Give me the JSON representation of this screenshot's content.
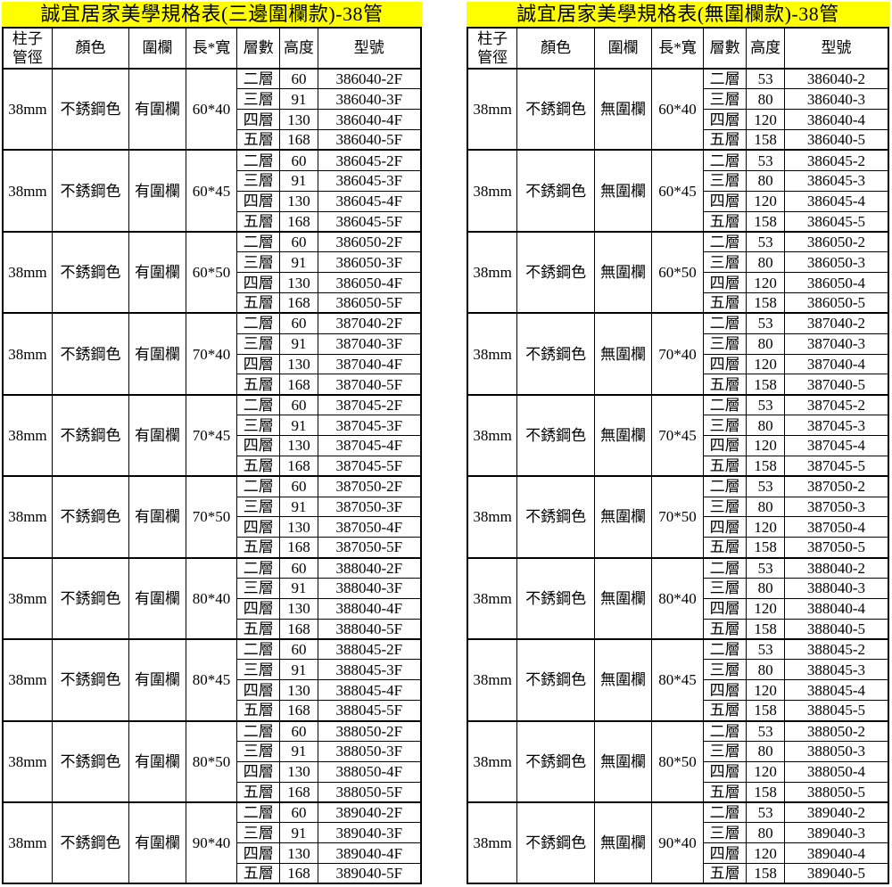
{
  "colors": {
    "title_bg": "#FFFF00",
    "border": "#000000",
    "text": "#000000",
    "background": "#FFFFFF"
  },
  "tables": [
    {
      "id": "fenced",
      "title": "誠宜居家美學規格表(三邊圍欄款)-38管",
      "headers": [
        "柱子\n管徑",
        "顏色",
        "圍欄",
        "長*寬",
        "層數",
        "高度",
        "型號"
      ],
      "groups": [
        {
          "diameter": "38mm",
          "color": "不銹鋼色",
          "fence": "有圍欄",
          "size": "60*40",
          "rows": [
            [
              "二層",
              "60",
              "386040-2F"
            ],
            [
              "三層",
              "91",
              "386040-3F"
            ],
            [
              "四層",
              "130",
              "386040-4F"
            ],
            [
              "五層",
              "168",
              "386040-5F"
            ]
          ]
        },
        {
          "diameter": "38mm",
          "color": "不銹鋼色",
          "fence": "有圍欄",
          "size": "60*45",
          "rows": [
            [
              "二層",
              "60",
              "386045-2F"
            ],
            [
              "三層",
              "91",
              "386045-3F"
            ],
            [
              "四層",
              "130",
              "386045-4F"
            ],
            [
              "五層",
              "168",
              "386045-5F"
            ]
          ]
        },
        {
          "diameter": "38mm",
          "color": "不銹鋼色",
          "fence": "有圍欄",
          "size": "60*50",
          "rows": [
            [
              "二層",
              "60",
              "386050-2F"
            ],
            [
              "三層",
              "91",
              "386050-3F"
            ],
            [
              "四層",
              "130",
              "386050-4F"
            ],
            [
              "五層",
              "168",
              "386050-5F"
            ]
          ]
        },
        {
          "diameter": "38mm",
          "color": "不銹鋼色",
          "fence": "有圍欄",
          "size": "70*40",
          "rows": [
            [
              "二層",
              "60",
              "387040-2F"
            ],
            [
              "三層",
              "91",
              "387040-3F"
            ],
            [
              "四層",
              "130",
              "387040-4F"
            ],
            [
              "五層",
              "168",
              "387040-5F"
            ]
          ]
        },
        {
          "diameter": "38mm",
          "color": "不銹鋼色",
          "fence": "有圍欄",
          "size": "70*45",
          "rows": [
            [
              "二層",
              "60",
              "387045-2F"
            ],
            [
              "三層",
              "91",
              "387045-3F"
            ],
            [
              "四層",
              "130",
              "387045-4F"
            ],
            [
              "五層",
              "168",
              "387045-5F"
            ]
          ]
        },
        {
          "diameter": "38mm",
          "color": "不銹鋼色",
          "fence": "有圍欄",
          "size": "70*50",
          "rows": [
            [
              "二層",
              "60",
              "387050-2F"
            ],
            [
              "三層",
              "91",
              "387050-3F"
            ],
            [
              "四層",
              "130",
              "387050-4F"
            ],
            [
              "五層",
              "168",
              "387050-5F"
            ]
          ]
        },
        {
          "diameter": "38mm",
          "color": "不銹鋼色",
          "fence": "有圍欄",
          "size": "80*40",
          "rows": [
            [
              "二層",
              "60",
              "388040-2F"
            ],
            [
              "三層",
              "91",
              "388040-3F"
            ],
            [
              "四層",
              "130",
              "388040-4F"
            ],
            [
              "五層",
              "168",
              "388040-5F"
            ]
          ]
        },
        {
          "diameter": "38mm",
          "color": "不銹鋼色",
          "fence": "有圍欄",
          "size": "80*45",
          "rows": [
            [
              "二層",
              "60",
              "388045-2F"
            ],
            [
              "三層",
              "91",
              "388045-3F"
            ],
            [
              "四層",
              "130",
              "388045-4F"
            ],
            [
              "五層",
              "168",
              "388045-5F"
            ]
          ]
        },
        {
          "diameter": "38mm",
          "color": "不銹鋼色",
          "fence": "有圍欄",
          "size": "80*50",
          "rows": [
            [
              "二層",
              "60",
              "388050-2F"
            ],
            [
              "三層",
              "91",
              "388050-3F"
            ],
            [
              "四層",
              "130",
              "388050-4F"
            ],
            [
              "五層",
              "168",
              "388050-5F"
            ]
          ]
        },
        {
          "diameter": "38mm",
          "color": "不銹鋼色",
          "fence": "有圍欄",
          "size": "90*40",
          "rows": [
            [
              "二層",
              "60",
              "389040-2F"
            ],
            [
              "三層",
              "91",
              "389040-3F"
            ],
            [
              "四層",
              "130",
              "389040-4F"
            ],
            [
              "五層",
              "168",
              "389040-5F"
            ]
          ]
        }
      ]
    },
    {
      "id": "unfenced",
      "title": "誠宜居家美學規格表(無圍欄款)-38管",
      "headers": [
        "柱子\n管徑",
        "顏色",
        "圍欄",
        "長*寬",
        "層數",
        "高度",
        "型號"
      ],
      "groups": [
        {
          "diameter": "38mm",
          "color": "不銹鋼色",
          "fence": "無圍欄",
          "size": "60*40",
          "rows": [
            [
              "二層",
              "53",
              "386040-2"
            ],
            [
              "三層",
              "80",
              "386040-3"
            ],
            [
              "四層",
              "120",
              "386040-4"
            ],
            [
              "五層",
              "158",
              "386040-5"
            ]
          ]
        },
        {
          "diameter": "38mm",
          "color": "不銹鋼色",
          "fence": "無圍欄",
          "size": "60*45",
          "rows": [
            [
              "二層",
              "53",
              "386045-2"
            ],
            [
              "三層",
              "80",
              "386045-3"
            ],
            [
              "四層",
              "120",
              "386045-4"
            ],
            [
              "五層",
              "158",
              "386045-5"
            ]
          ]
        },
        {
          "diameter": "38mm",
          "color": "不銹鋼色",
          "fence": "無圍欄",
          "size": "60*50",
          "rows": [
            [
              "二層",
              "53",
              "386050-2"
            ],
            [
              "三層",
              "80",
              "386050-3"
            ],
            [
              "四層",
              "120",
              "386050-4"
            ],
            [
              "五層",
              "158",
              "386050-5"
            ]
          ]
        },
        {
          "diameter": "38mm",
          "color": "不銹鋼色",
          "fence": "無圍欄",
          "size": "70*40",
          "rows": [
            [
              "二層",
              "53",
              "387040-2"
            ],
            [
              "三層",
              "80",
              "387040-3"
            ],
            [
              "四層",
              "120",
              "387040-4"
            ],
            [
              "五層",
              "158",
              "387040-5"
            ]
          ]
        },
        {
          "diameter": "38mm",
          "color": "不銹鋼色",
          "fence": "無圍欄",
          "size": "70*45",
          "rows": [
            [
              "二層",
              "53",
              "387045-2"
            ],
            [
              "三層",
              "80",
              "387045-3"
            ],
            [
              "四層",
              "120",
              "387045-4"
            ],
            [
              "五層",
              "158",
              "387045-5"
            ]
          ]
        },
        {
          "diameter": "38mm",
          "color": "不銹鋼色",
          "fence": "無圍欄",
          "size": "70*50",
          "rows": [
            [
              "二層",
              "53",
              "387050-2"
            ],
            [
              "三層",
              "80",
              "387050-3"
            ],
            [
              "四層",
              "120",
              "387050-4"
            ],
            [
              "五層",
              "158",
              "387050-5"
            ]
          ]
        },
        {
          "diameter": "38mm",
          "color": "不銹鋼色",
          "fence": "無圍欄",
          "size": "80*40",
          "rows": [
            [
              "二層",
              "53",
              "388040-2"
            ],
            [
              "三層",
              "80",
              "388040-3"
            ],
            [
              "四層",
              "120",
              "388040-4"
            ],
            [
              "五層",
              "158",
              "388040-5"
            ]
          ]
        },
        {
          "diameter": "38mm",
          "color": "不銹鋼色",
          "fence": "無圍欄",
          "size": "80*45",
          "rows": [
            [
              "二層",
              "53",
              "388045-2"
            ],
            [
              "三層",
              "80",
              "388045-3"
            ],
            [
              "四層",
              "120",
              "388045-4"
            ],
            [
              "五層",
              "158",
              "388045-5"
            ]
          ]
        },
        {
          "diameter": "38mm",
          "color": "不銹鋼色",
          "fence": "無圍欄",
          "size": "80*50",
          "rows": [
            [
              "二層",
              "53",
              "388050-2"
            ],
            [
              "三層",
              "80",
              "388050-3"
            ],
            [
              "四層",
              "120",
              "388050-4"
            ],
            [
              "五層",
              "158",
              "388050-5"
            ]
          ]
        },
        {
          "diameter": "38mm",
          "color": "不銹鋼色",
          "fence": "無圍欄",
          "size": "90*40",
          "rows": [
            [
              "二層",
              "53",
              "389040-2"
            ],
            [
              "三層",
              "80",
              "389040-3"
            ],
            [
              "四層",
              "120",
              "389040-4"
            ],
            [
              "五層",
              "158",
              "389040-5"
            ]
          ]
        }
      ]
    }
  ]
}
